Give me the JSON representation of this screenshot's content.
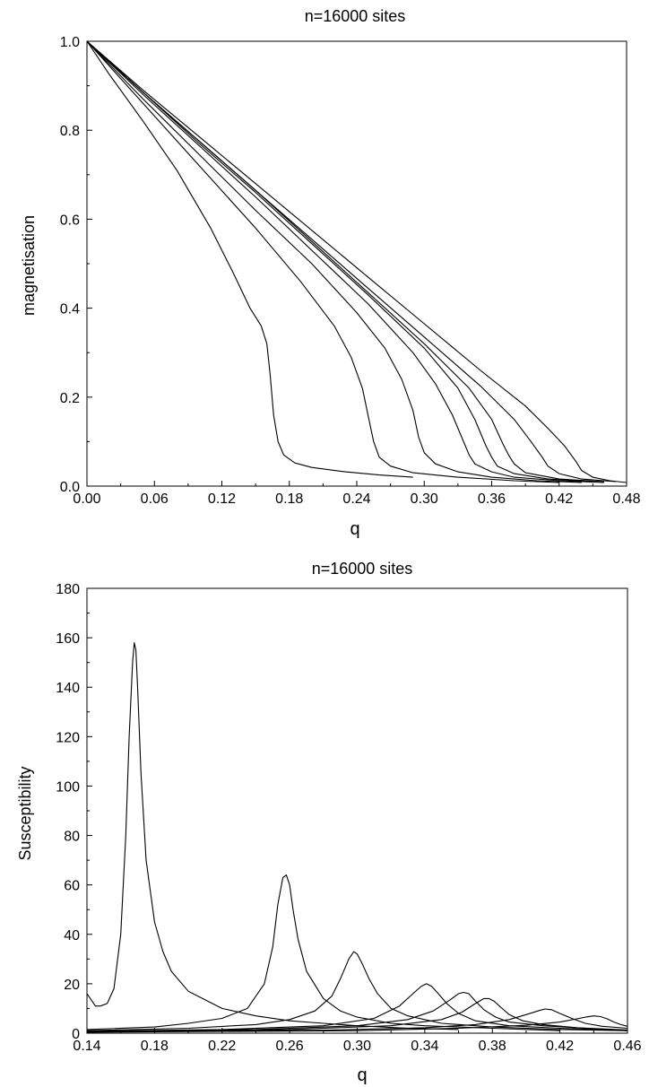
{
  "chart_data": [
    {
      "type": "line",
      "title": "n=16000 sites",
      "xlabel": "q",
      "ylabel": "magnetisation",
      "xlim": [
        0.0,
        0.48
      ],
      "ylim": [
        0.0,
        1.0
      ],
      "x_ticks": [
        0.0,
        0.06,
        0.12,
        0.18,
        0.24,
        0.3,
        0.36,
        0.42,
        0.48
      ],
      "x_tick_labels": [
        "0.00",
        "0.06",
        "0.12",
        "0.18",
        "0.24",
        "0.30",
        "0.36",
        "0.42",
        "0.48"
      ],
      "y_ticks": [
        0.0,
        0.2,
        0.4,
        0.6,
        0.8,
        1.0
      ],
      "y_tick_labels": [
        "0.0",
        "0.2",
        "0.4",
        "0.6",
        "0.8",
        "1.0"
      ],
      "grid": false,
      "series": [
        {
          "x": [
            0,
            0.02,
            0.05,
            0.08,
            0.11,
            0.13,
            0.145,
            0.155,
            0.16,
            0.163,
            0.166,
            0.17,
            0.175,
            0.185,
            0.2,
            0.23,
            0.26,
            0.29
          ],
          "y": [
            1.0,
            0.925,
            0.82,
            0.71,
            0.58,
            0.48,
            0.4,
            0.36,
            0.32,
            0.25,
            0.16,
            0.1,
            0.07,
            0.052,
            0.042,
            0.032,
            0.025,
            0.02
          ]
        },
        {
          "x": [
            0,
            0.05,
            0.1,
            0.15,
            0.19,
            0.22,
            0.235,
            0.245,
            0.25,
            0.255,
            0.26,
            0.27,
            0.29,
            0.33,
            0.38,
            0.42
          ],
          "y": [
            1.0,
            0.86,
            0.72,
            0.58,
            0.46,
            0.36,
            0.29,
            0.22,
            0.16,
            0.1,
            0.065,
            0.045,
            0.03,
            0.02,
            0.012,
            0.008
          ]
        },
        {
          "x": [
            0,
            0.05,
            0.1,
            0.15,
            0.2,
            0.24,
            0.265,
            0.28,
            0.29,
            0.295,
            0.3,
            0.31,
            0.33,
            0.36,
            0.4,
            0.44
          ],
          "y": [
            1.0,
            0.87,
            0.745,
            0.62,
            0.5,
            0.39,
            0.31,
            0.24,
            0.17,
            0.11,
            0.075,
            0.05,
            0.032,
            0.02,
            0.012,
            0.008
          ]
        },
        {
          "x": [
            0,
            0.05,
            0.1,
            0.15,
            0.2,
            0.25,
            0.29,
            0.31,
            0.325,
            0.335,
            0.34,
            0.345,
            0.36,
            0.38,
            0.42,
            0.46
          ],
          "y": [
            1.0,
            0.88,
            0.765,
            0.65,
            0.53,
            0.41,
            0.3,
            0.23,
            0.16,
            0.1,
            0.07,
            0.05,
            0.032,
            0.02,
            0.012,
            0.008
          ]
        },
        {
          "x": [
            0,
            0.05,
            0.1,
            0.15,
            0.2,
            0.25,
            0.3,
            0.33,
            0.345,
            0.355,
            0.36,
            0.365,
            0.38,
            0.41,
            0.45
          ],
          "y": [
            1.0,
            0.885,
            0.77,
            0.66,
            0.545,
            0.43,
            0.31,
            0.22,
            0.15,
            0.09,
            0.065,
            0.045,
            0.028,
            0.016,
            0.01
          ]
        },
        {
          "x": [
            0,
            0.05,
            0.1,
            0.15,
            0.2,
            0.25,
            0.3,
            0.34,
            0.36,
            0.37,
            0.375,
            0.38,
            0.39,
            0.42,
            0.46
          ],
          "y": [
            1.0,
            0.885,
            0.775,
            0.665,
            0.55,
            0.435,
            0.32,
            0.22,
            0.15,
            0.095,
            0.07,
            0.05,
            0.03,
            0.016,
            0.01
          ]
        },
        {
          "x": [
            0,
            0.05,
            0.1,
            0.15,
            0.2,
            0.25,
            0.3,
            0.35,
            0.38,
            0.395,
            0.405,
            0.41,
            0.42,
            0.44,
            0.47
          ],
          "y": [
            1.0,
            0.885,
            0.775,
            0.665,
            0.555,
            0.445,
            0.335,
            0.225,
            0.15,
            0.1,
            0.065,
            0.045,
            0.028,
            0.016,
            0.01
          ]
        },
        {
          "x": [
            0,
            0.05,
            0.1,
            0.15,
            0.2,
            0.25,
            0.3,
            0.35,
            0.39,
            0.41,
            0.425,
            0.435,
            0.44,
            0.45,
            0.465,
            0.48
          ],
          "y": [
            1.0,
            0.89,
            0.785,
            0.68,
            0.575,
            0.47,
            0.365,
            0.26,
            0.18,
            0.13,
            0.09,
            0.055,
            0.035,
            0.02,
            0.012,
            0.008
          ]
        }
      ]
    },
    {
      "type": "line",
      "title": "n=16000 sites",
      "xlabel": "q",
      "ylabel": "Susceptibility",
      "xlim": [
        0.14,
        0.46
      ],
      "ylim": [
        0,
        180
      ],
      "x_ticks": [
        0.14,
        0.18,
        0.22,
        0.26,
        0.3,
        0.34,
        0.38,
        0.42,
        0.46
      ],
      "x_tick_labels": [
        "0.14",
        "0.18",
        "0.22",
        "0.26",
        "0.30",
        "0.34",
        "0.38",
        "0.42",
        "0.46"
      ],
      "y_ticks": [
        0,
        20,
        40,
        60,
        80,
        100,
        120,
        140,
        160,
        180
      ],
      "y_tick_labels": [
        "0",
        "20",
        "40",
        "60",
        "80",
        "100",
        "120",
        "140",
        "160",
        "180"
      ],
      "grid": false,
      "series": [
        {
          "x": [
            0.14,
            0.142,
            0.145,
            0.148,
            0.152,
            0.156,
            0.16,
            0.163,
            0.165,
            0.167,
            0.168,
            0.169,
            0.17,
            0.172,
            0.175,
            0.18,
            0.185,
            0.19,
            0.2,
            0.22,
            0.24,
            0.26,
            0.28,
            0.3,
            0.33,
            0.36
          ],
          "y": [
            16,
            14,
            11,
            11,
            12,
            18,
            40,
            80,
            120,
            150,
            158,
            155,
            140,
            105,
            70,
            45,
            33,
            25,
            17,
            10,
            7,
            5,
            4,
            3,
            2,
            1.5
          ]
        },
        {
          "x": [
            0.14,
            0.18,
            0.2,
            0.22,
            0.235,
            0.245,
            0.25,
            0.253,
            0.256,
            0.258,
            0.26,
            0.262,
            0.265,
            0.27,
            0.28,
            0.29,
            0.3,
            0.32,
            0.34,
            0.38,
            0.42
          ],
          "y": [
            1.5,
            2.5,
            4,
            6,
            10,
            20,
            35,
            52,
            63,
            64,
            60,
            50,
            38,
            25,
            14,
            9,
            6.5,
            4,
            3,
            2,
            1
          ]
        },
        {
          "x": [
            0.14,
            0.2,
            0.24,
            0.26,
            0.275,
            0.285,
            0.29,
            0.295,
            0.298,
            0.3,
            0.303,
            0.307,
            0.312,
            0.32,
            0.33,
            0.35,
            0.38,
            0.42,
            0.46
          ],
          "y": [
            1,
            2,
            3.5,
            5.5,
            9,
            15,
            22,
            30,
            33,
            32,
            28,
            22,
            16,
            10,
            7,
            4,
            2.5,
            1.5,
            1
          ]
        },
        {
          "x": [
            0.14,
            0.22,
            0.28,
            0.31,
            0.325,
            0.333,
            0.338,
            0.341,
            0.344,
            0.348,
            0.353,
            0.36,
            0.37,
            0.39,
            0.42,
            0.46
          ],
          "y": [
            0.8,
            1.5,
            3,
            6,
            11,
            16,
            19,
            20,
            19,
            16,
            12,
            8,
            5,
            3,
            2,
            1
          ]
        },
        {
          "x": [
            0.14,
            0.24,
            0.3,
            0.33,
            0.345,
            0.355,
            0.36,
            0.363,
            0.366,
            0.37,
            0.375,
            0.382,
            0.39,
            0.41,
            0.44,
            0.46
          ],
          "y": [
            0.7,
            1.5,
            3,
            5.5,
            9,
            13.5,
            16,
            16.5,
            16,
            13,
            9.5,
            6.5,
            4.5,
            3,
            1.8,
            1.2
          ]
        },
        {
          "x": [
            0.14,
            0.26,
            0.32,
            0.35,
            0.362,
            0.37,
            0.375,
            0.378,
            0.381,
            0.385,
            0.39,
            0.398,
            0.41,
            0.43,
            0.46
          ],
          "y": [
            0.6,
            1.5,
            3,
            5.5,
            8.5,
            12,
            14,
            14,
            13,
            10.5,
            7.5,
            5,
            3.5,
            2.2,
            1.3
          ]
        },
        {
          "x": [
            0.14,
            0.28,
            0.34,
            0.37,
            0.39,
            0.4,
            0.407,
            0.411,
            0.415,
            0.42,
            0.427,
            0.435,
            0.445,
            0.46
          ],
          "y": [
            0.5,
            1.2,
            2.2,
            3.5,
            5.5,
            7.5,
            9,
            9.8,
            9.5,
            8,
            6,
            4,
            2.8,
            2
          ]
        },
        {
          "x": [
            0.14,
            0.3,
            0.36,
            0.4,
            0.42,
            0.43,
            0.436,
            0.44,
            0.444,
            0.448,
            0.452,
            0.456,
            0.46
          ],
          "y": [
            0.4,
            1,
            2,
            3.2,
            4.5,
            5.8,
            6.6,
            7,
            6.7,
            5.8,
            4.5,
            3.5,
            2.8
          ]
        }
      ]
    }
  ]
}
